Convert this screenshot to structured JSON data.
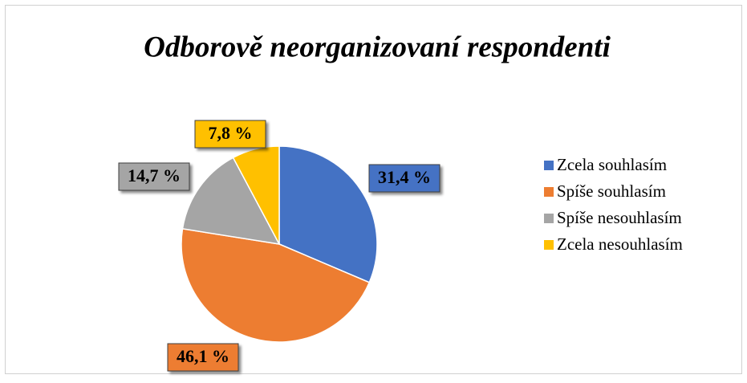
{
  "chart_data": {
    "type": "pie",
    "title": "Odborově neorganizovaní respondenti",
    "categories": [
      "Zcela souhlasím",
      "Spíše souhlasím",
      "Spíše nesouhlasím",
      "Zcela nesouhlasím"
    ],
    "values": [
      31.4,
      46.1,
      14.7,
      7.8
    ],
    "value_labels": [
      "31,4 %",
      "46,1 %",
      "14,7 %",
      "7,8 %"
    ],
    "colors": [
      "#4472c4",
      "#ed7d31",
      "#a5a5a5",
      "#ffc000"
    ],
    "legend": "right"
  }
}
